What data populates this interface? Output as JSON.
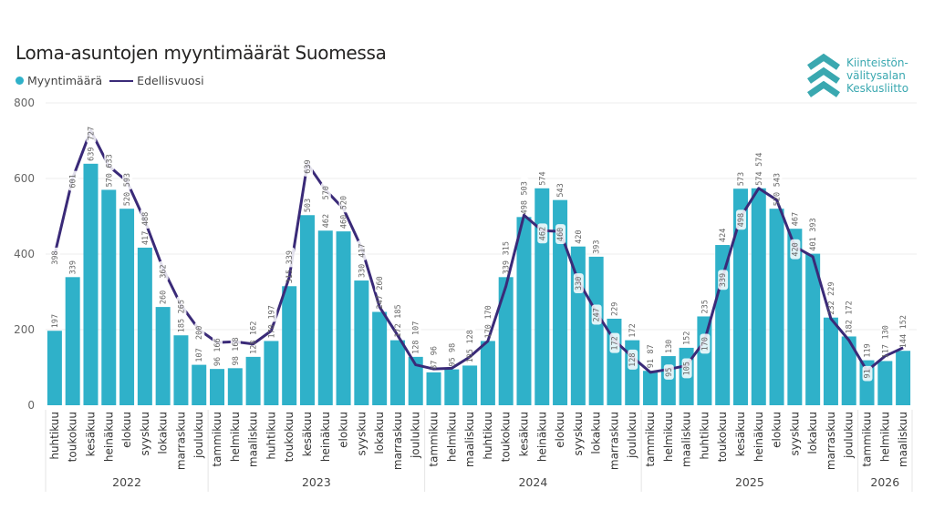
{
  "colors": {
    "bar": "#2FB1C9",
    "line": "#3A2A78",
    "logo": "#3AA8B0"
  },
  "logo": {
    "lines": [
      "Kiinteistön-",
      "välitysalan",
      "Keskusliitto"
    ],
    "icon": "triple-chevron-up-icon"
  },
  "chart_data": {
    "type": "bar+line",
    "title": "Loma-asuntojen myyntimäärät Suomessa",
    "legend": {
      "placement": "top-left",
      "entries": [
        "Myyntimäärä",
        "Edellisvuosi"
      ]
    },
    "ylim": [
      0,
      800
    ],
    "yticks": [
      "0",
      "200",
      "400",
      "600",
      "800"
    ],
    "grid": true,
    "years": [
      {
        "label": "2022",
        "months": 9
      },
      {
        "label": "2023",
        "months": 12
      },
      {
        "label": "2024",
        "months": 12
      },
      {
        "label": "2025",
        "months": 12
      },
      {
        "label": "2026",
        "months": 3
      }
    ],
    "categories": [
      "huhtikuu",
      "toukokuu",
      "kesäkuu",
      "heinäkuu",
      "elokuu",
      "syyskuu",
      "lokakuu",
      "marraskuu",
      "joulukuu",
      "tammikuu",
      "helmikuu",
      "maaliskuu",
      "huhtikuu",
      "toukokuu",
      "kesäkuu",
      "heinäkuu",
      "elokuu",
      "syyskuu",
      "lokakuu",
      "marraskuu",
      "joulukuu",
      "tammikuu",
      "helmikuu",
      "maaliskuu",
      "huhtikuu",
      "toukokuu",
      "kesäkuu",
      "heinäkuu",
      "elokuu",
      "syyskuu",
      "lokakuu",
      "marraskuu",
      "joulukuu",
      "tammikuu",
      "helmikuu",
      "maaliskuu",
      "huhtikuu",
      "toukokuu",
      "kesäkuu",
      "heinäkuu",
      "elokuu",
      "syyskuu",
      "lokakuu",
      "marraskuu",
      "joulukuu",
      "tammikuu",
      "helmikuu",
      "maaliskuu"
    ],
    "series": [
      {
        "name": "Myyntimäärä",
        "type": "bar",
        "values": [
          197,
          339,
          639,
          570,
          520,
          417,
          260,
          185,
          107,
          96,
          98,
          128,
          170,
          315,
          503,
          462,
          460,
          330,
          247,
          172,
          128,
          87,
          95,
          105,
          170,
          339,
          498,
          574,
          543,
          420,
          393,
          229,
          172,
          91,
          130,
          152,
          235,
          424,
          573,
          574,
          520,
          467,
          401,
          232,
          182,
          119,
          117,
          144
        ]
      },
      {
        "name": "Edellisvuosi",
        "type": "line",
        "values": [
          398,
          601,
          727,
          633,
          593,
          488,
          362,
          265,
          200,
          166,
          168,
          162,
          197,
          339,
          639,
          570,
          520,
          417,
          260,
          185,
          107,
          96,
          98,
          128,
          170,
          315,
          503,
          462,
          460,
          330,
          247,
          172,
          128,
          87,
          95,
          105,
          170,
          339,
          498,
          574,
          543,
          420,
          393,
          229,
          172,
          91,
          130,
          152
        ]
      }
    ]
  }
}
